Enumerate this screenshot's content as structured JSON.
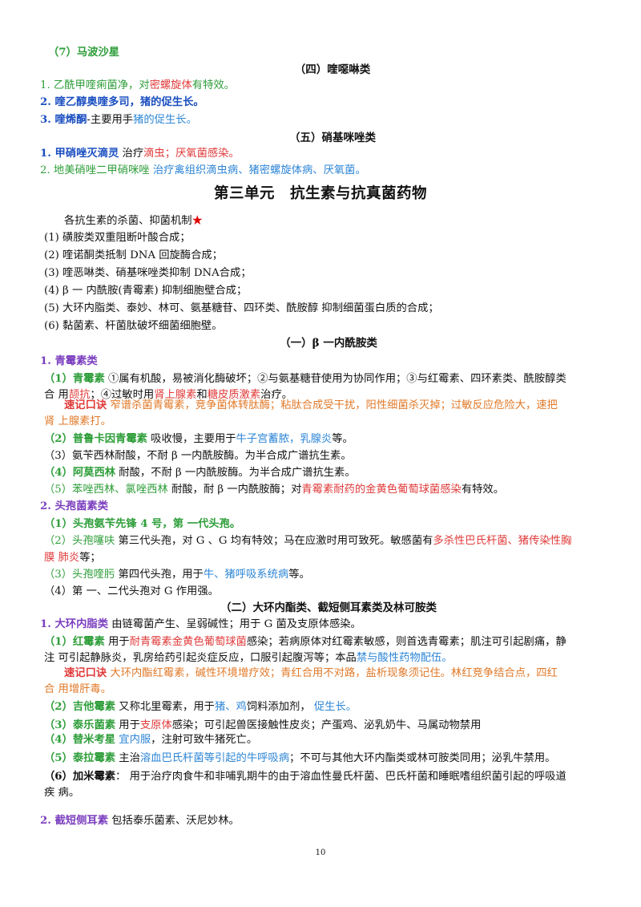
{
  "l1": {
    "a": "（7）马波沙星"
  },
  "h4": {
    "t": "（四）喹噁啉类"
  },
  "q1": {
    "a": "1. 乙酰甲喹痢菌净，对",
    "b": "密螺旋体",
    "c": "有特效。"
  },
  "q2": {
    "a": "2. 喹乙醇奥喹多司，",
    "b": "猪的促生长。"
  },
  "q3": {
    "a": "3. 喹烯酮",
    "b": "-主要用手",
    "c": "猪的促生长。"
  },
  "h5": {
    "t": "（五）硝基咪唑类"
  },
  "n1": {
    "a": "1. 甲硝唑灭滴灵",
    "b": " 治疗",
    "c": "滴虫；厌氧菌感染。"
  },
  "n2": {
    "a": "2. 地美硝唑二甲硝咪唑",
    "b": " 治疗禽组织滴虫病、猪密螺旋体病、厌氧菌。"
  },
  "unit": {
    "t": "第三单元　抗生素与抗真菌药物"
  },
  "mech": {
    "title": "各抗生素的杀菌、抑菌机制",
    "star": "★",
    "items": [
      "(1) 磺胺类双重阻断叶酸合成；",
      "(2) 喹诺酮类抵制 DNA 回旋酶合成；",
      "(3) 喹恶啉类、硝基咪唑类抑制 DNA合成；",
      "(4) β 一 内酰胺(青霉素)  抑制细胞壁合成；",
      "(5) 大环内脂类、泰妙、林可、氨基糖苷、四环类、酰胺醇   抑制细菌蛋白质的合成；",
      "(6) 黏菌素、杆菌肽破坏细菌细胞壁。"
    ]
  },
  "h1": {
    "t": "（一）β 一内酰胺类"
  },
  "pen": {
    "title": "1. 青霉素类",
    "p1": {
      "a": "（1）青霉素",
      "b": " ①属有机酸，易被消化酶破坏；②与氨基糖苷使用为协同作用；③与红霉素、四环素类、酰胺醇类",
      "c": "合  用",
      "d": "颉抗",
      "e": "；④过敏时用",
      "f": "肾上腺素",
      "g": "和",
      "h": "糖皮质激素",
      "i": "治疗。"
    },
    "mem": {
      "a": "速记口诀",
      "b": " 窄谱杀菌青霉素，竞争菌体转肽酶；粘肽合成受干扰，阳性细菌杀灭掉；过敏反应危险大，速把",
      "c": "肾  上腺素打。"
    },
    "p2": {
      "a": "（2）普鲁卡因青霉素",
      "b": "  吸收慢，主要用于",
      "c": "牛子宫蓄脓，乳腺炎",
      "d": "等。"
    },
    "p3": {
      "a": "（3）氨苄西林耐酸，不耐 β 一内酰胺酶。为半合成广谱抗生素。"
    },
    "p4": {
      "a": "（4）阿莫西林",
      "b": " 耐酸，不耐 β 一内酰胺酶。为半合成广谱抗生素。"
    },
    "p5": {
      "a": "（5）苯唑西林、氯唑西林",
      "b": "  耐酸，耐 β 一内酰胺酶；对",
      "c": "青霉素耐药的金黄色葡萄球菌感染",
      "d": "有特效。"
    }
  },
  "ceph": {
    "title": "2. 头孢菌素类",
    "c1": {
      "a": "（1）头孢氨苄先锋 4 号，第 一代头孢。"
    },
    "c2": {
      "a": "（2）头孢噻呋",
      "b": "  第三代头孢，对 G 、G 均有特效；马在应激时用可致死。敏感菌有",
      "c": "多杀性巴氏杆菌、猪传染性胸",
      "d": "膜  肺炎",
      "e": "等；"
    },
    "c3": {
      "a": "（3）头孢喹肟",
      "b": "  第四代头孢，用于",
      "c": "牛、猪呼吸系统病",
      "d": "等。"
    },
    "c4": {
      "a": "（4）第 一、二代头孢对 G 作用强。"
    }
  },
  "h2": {
    "t": "（二）大环内酯类、截短侧耳素类及林可胺类"
  },
  "mac": {
    "title": "1. 大环内脂类",
    "title_rest": " 由链霉菌产生、呈弱碱性；用于 G 菌及支原体感染。",
    "m1": {
      "a": "（1）红霉素",
      "b": "  用于",
      "c": "耐青霉素金黄色葡萄球菌",
      "d": "感染；若病原体对红霉素敏感，则首选青霉素；肌注可引起剧痛，静",
      "e": "注  可引起静脉炎，乳房给药引起炎症反应，口服引起腹泻等；本品",
      "f": "禁与酸性药物配伍。"
    },
    "mem": {
      "a": "速记口诀",
      "b": " 大环内酯红霉素，碱性环境增疗效；青红合用不对路，盐析现象须记住。林红竞争结合点，四红",
      "c": "合  用增肝毒。"
    },
    "m2": {
      "a": "（2）吉他霉素",
      "b": "  又称北里霉素，用于",
      "c": "猪、鸡",
      "d": "饲料添加剂，  ",
      "e": "促生长。"
    },
    "m3": {
      "a": "（3）泰乐菌素",
      "b": "  用于",
      "c": "支原体",
      "d": "感染；可引起兽医接触性皮炎；产蛋鸡、泌乳奶牛、马属动物禁用"
    },
    "m4": {
      "a": "  （4）替米考星",
      "b": "  宜内服",
      "c": "，注射可致牛猪死亡。"
    },
    "m5": {
      "a": "（5）泰拉霉素",
      "b": "  主治",
      "c": "溶血巴氏杆菌等引起的牛呼吸病",
      "d": "；不可与其他大环内酯类或林可胺类同用；泌乳牛禁用。"
    },
    "m6": {
      "a": "（6）加米霉素",
      "b": "：  用于治疗肉食牛和非哺乳期牛的由于溶血性曼氏杆菌、巴氏杆菌和睡眠嗜组织菌引起的呼吸道",
      "c": "疾  病。"
    }
  },
  "trunc": {
    "a": "2. 截短侧耳素",
    "b": "  包括泰乐菌素、沃尼妙林。"
  },
  "page_number": "10"
}
